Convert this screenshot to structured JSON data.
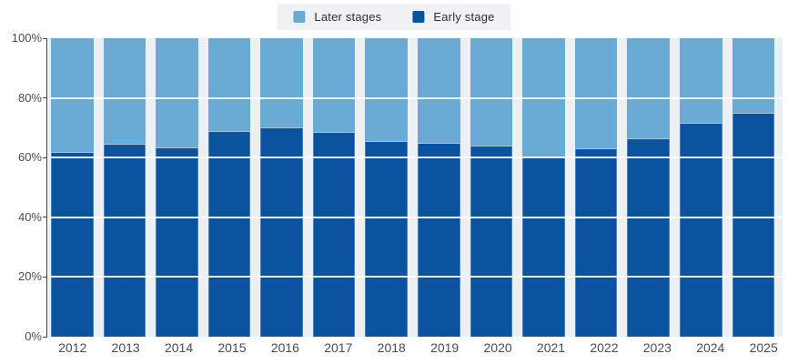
{
  "chart_data": {
    "type": "bar",
    "variant": "stacked-100-percent",
    "categories": [
      "2012",
      "2013",
      "2014",
      "2015",
      "2016",
      "2017",
      "2018",
      "2019",
      "2020",
      "2021",
      "2022",
      "2023",
      "2024",
      "2025"
    ],
    "series": [
      {
        "name": "Later stages",
        "color": "#6aabd6",
        "values": [
          38,
          35.5,
          36.5,
          31,
          30,
          31.5,
          34.5,
          35,
          36,
          39.5,
          37,
          33.5,
          28.5,
          25
        ]
      },
      {
        "name": "Early stage",
        "color": "#0b539e",
        "values": [
          62,
          64.5,
          63.5,
          69,
          70,
          68.5,
          65.5,
          65,
          64,
          60.5,
          63,
          66.5,
          71.5,
          75
        ]
      }
    ],
    "unit": "%",
    "ylim": [
      0,
      100
    ],
    "y_ticks": [
      {
        "label": "0%",
        "value": 0
      },
      {
        "label": "20%",
        "value": 20
      },
      {
        "label": "40%",
        "value": 40
      },
      {
        "label": "60%",
        "value": 60
      },
      {
        "label": "80%",
        "value": 80
      },
      {
        "label": "100%",
        "value": 100
      }
    ],
    "gridlines": [
      20,
      40,
      60,
      80
    ],
    "legend_position": "top",
    "grid": true
  },
  "colors": {
    "later_stages": "#6aabd6",
    "early_stage": "#0b539e",
    "plot_background": "#edf0f3",
    "gridline": "#ffffff",
    "axis_line": "#3e3e3e",
    "tick_label": "#454d54",
    "legend_background": "#eff1f4",
    "legend_text": "#2f2f2f"
  }
}
